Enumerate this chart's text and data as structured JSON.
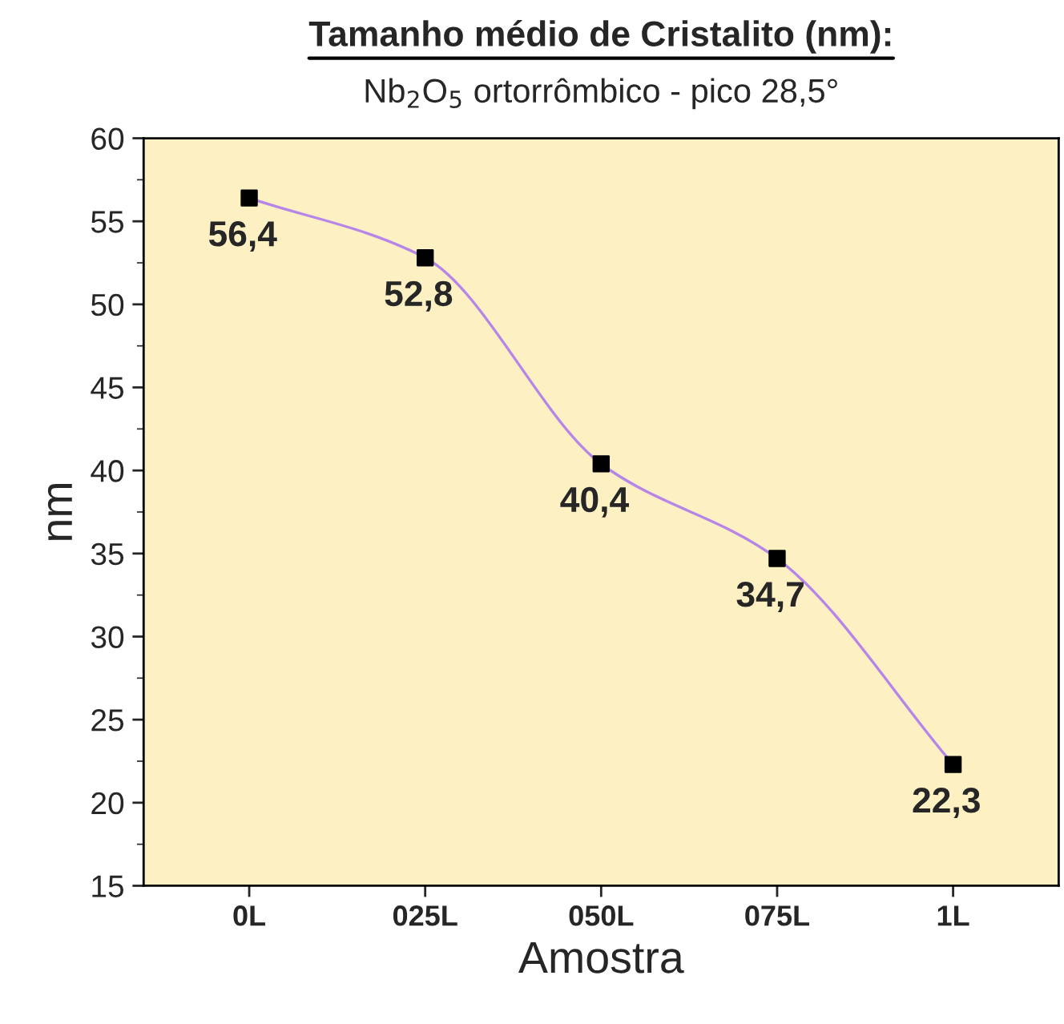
{
  "chart_data": {
    "type": "line",
    "title": "Tamanho médio de Cristalito (nm):",
    "subtitle": "Nb$_{2}$O$_{5}$ ortorrômbico - pico 28,5°",
    "xlabel": "Amostra",
    "ylabel": "nm",
    "categories": [
      "0L",
      "025L",
      "050L",
      "075L",
      "1L"
    ],
    "series": [
      {
        "color": "#b784e8",
        "colors": [
          "#000000",
          "#000000",
          "#000000",
          "#000000",
          "#000000"
        ],
        "values": [
          56.4,
          52.8,
          40.4,
          34.7,
          22.3
        ],
        "value_labels": [
          "56,4",
          "52,8",
          "40,4",
          "34,7",
          "22,3"
        ]
      }
    ],
    "ylim": [
      15,
      60
    ],
    "yticks": [
      15,
      20,
      25,
      30,
      35,
      40,
      45,
      50,
      55,
      60
    ],
    "marker": "square",
    "line_style": "solid",
    "grid": false,
    "legend": false
  }
}
